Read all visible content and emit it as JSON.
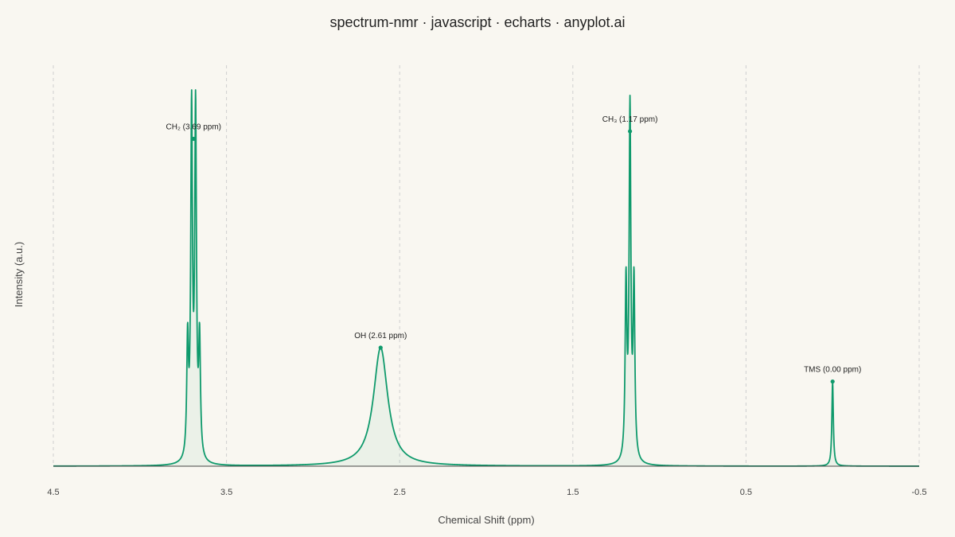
{
  "title": "spectrum-nmr · javascript · echarts · anyplot.ai",
  "colors": {
    "background": "#f9f7f1",
    "line": "#0f9a6c",
    "area": "#0f9a6c",
    "grid": "#cfcfcf",
    "axis": "#444444"
  },
  "chart_data": {
    "type": "line",
    "xlabel": "Chemical Shift (ppm)",
    "ylabel": "Intensity (a.u.)",
    "xlim": [
      4.5,
      -0.5
    ],
    "x_reversed": true,
    "x_ticks": [
      4.5,
      3.5,
      2.5,
      1.5,
      0.5,
      -0.5
    ],
    "x_tick_labels": [
      "4.5",
      "3.5",
      "2.5",
      "1.5",
      "0.5",
      "-0.5"
    ],
    "ylim": [
      0,
      1.0
    ],
    "grid": {
      "x": true,
      "y": false,
      "style": "dashed"
    },
    "area_fill": true,
    "legend": "none",
    "peaks": [
      {
        "name": "CH2",
        "center": 3.69,
        "multiplicity": "quartet",
        "spacing": 0.023,
        "height": 1.0,
        "width": 0.006
      },
      {
        "name": "OH",
        "center": 2.61,
        "multiplicity": "singlet",
        "height": 0.315,
        "width": 0.05
      },
      {
        "name": "CH3",
        "center": 1.17,
        "multiplicity": "triplet",
        "spacing": 0.023,
        "height": 0.985,
        "width": 0.006
      },
      {
        "name": "TMS",
        "center": 0.0,
        "multiplicity": "singlet",
        "height": 0.225,
        "width": 0.005
      }
    ],
    "annotations": [
      {
        "text": "CH₂ (3.69 ppm)",
        "x": 3.69,
        "y": 0.87
      },
      {
        "text": "OH (2.61 ppm)",
        "x": 2.61,
        "y": 0.315
      },
      {
        "text": "CH₃ (1.17 ppm)",
        "x": 1.17,
        "y": 0.89
      },
      {
        "text": "TMS (0.00 ppm)",
        "x": 0.0,
        "y": 0.225
      }
    ]
  }
}
